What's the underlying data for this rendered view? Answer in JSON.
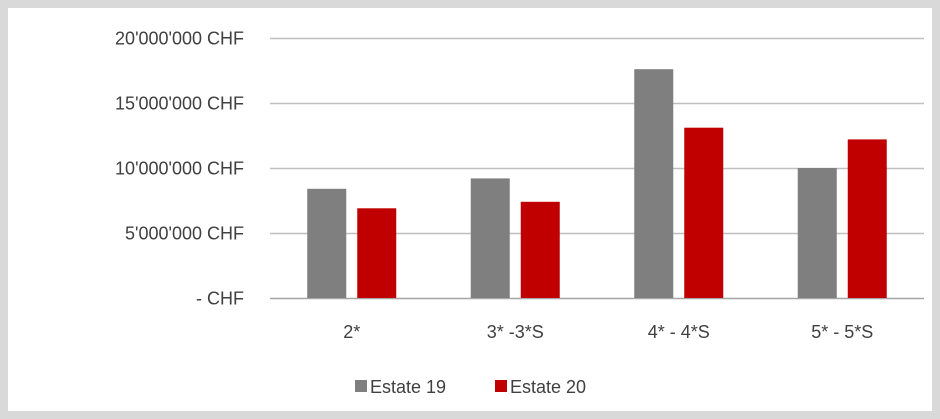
{
  "chart_data": {
    "type": "bar",
    "categories": [
      "2*",
      "3* -3*S",
      "4* - 4*S",
      "5* - 5*S"
    ],
    "series": [
      {
        "name": "Estate 19",
        "color": "#7f7f7f",
        "values": [
          8400000,
          9200000,
          17600000,
          10000000
        ]
      },
      {
        "name": "Estate 20",
        "color": "#c00000",
        "values": [
          6900000,
          7400000,
          13100000,
          12200000
        ]
      }
    ],
    "ylim": [
      0,
      20000000
    ],
    "yticks": [
      0,
      5000000,
      10000000,
      15000000,
      20000000
    ],
    "ytick_labels": [
      "-   CHF",
      "5'000'000 CHF",
      "10'000'000 CHF",
      "15'000'000 CHF",
      "20'000'000 CHF"
    ],
    "grid": true,
    "legend_position": "bottom",
    "title": "",
    "xlabel": "",
    "ylabel": ""
  }
}
